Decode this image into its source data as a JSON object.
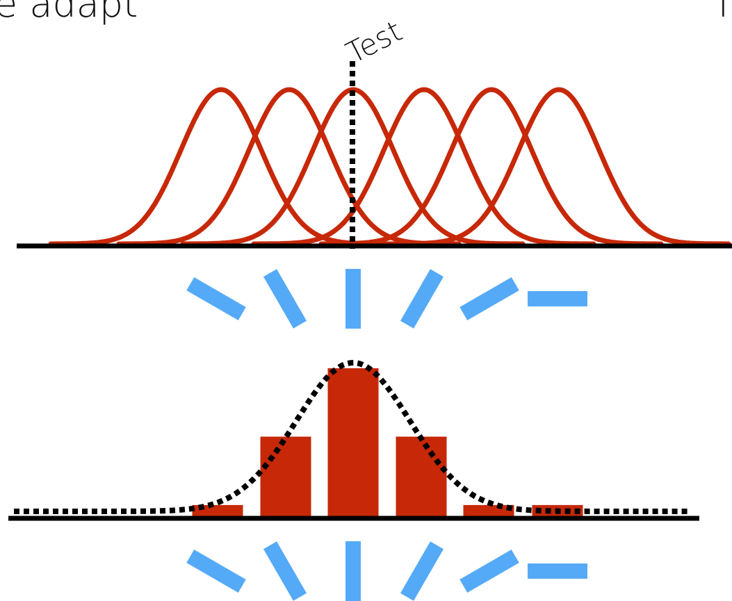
{
  "header": {
    "partial_text_left": "e adapt",
    "partial_text_right": "f"
  },
  "test_label": "Test",
  "colors": {
    "tuning_curve": "#c62808",
    "response_bar": "#c62808",
    "orientation_bar": "#55aaf7",
    "axis": "#000000",
    "dotted_line": "#000000"
  },
  "tuning_curves": {
    "count": 6,
    "preferred_orientations_deg": [
      -60,
      -30,
      0,
      30,
      60,
      90
    ],
    "test_orientation_deg": 0
  },
  "top_orientation_row": {
    "icons": [
      "orientation-bar-minus-60",
      "orientation-bar-minus-30",
      "orientation-bar-0",
      "orientation-bar-30",
      "orientation-bar-60",
      "orientation-bar-90"
    ],
    "angles_deg": [
      -60,
      -30,
      0,
      30,
      60,
      90
    ]
  },
  "population_response": {
    "values": [
      0.08,
      0.54,
      1.0,
      0.54,
      0.08,
      0.08
    ]
  },
  "bottom_orientation_row": {
    "angles_deg": [
      -60,
      -30,
      0,
      30,
      60,
      90
    ]
  }
}
